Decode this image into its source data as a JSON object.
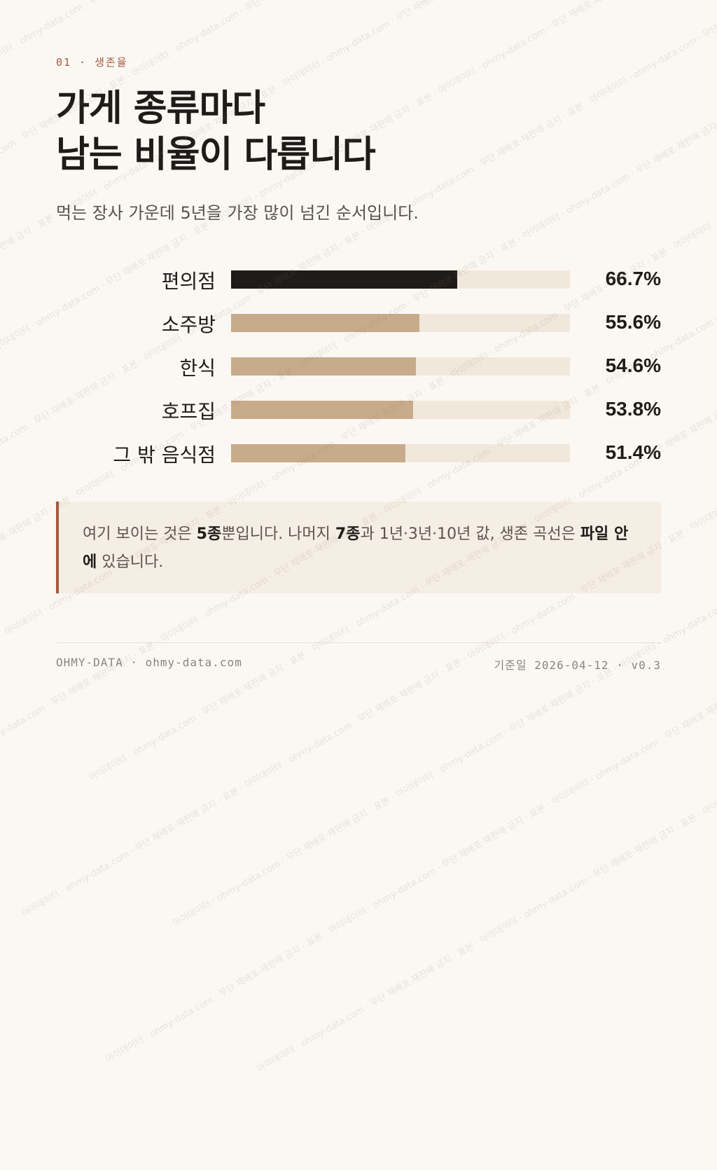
{
  "eyebrow": "01 · 생존율",
  "title": {
    "line1": "가게 종류마다",
    "line2": "남는 비율이 다릅니다"
  },
  "subtitle": "먹는 장사 가운데 5년을 가장 많이 넘긴 순서입니다.",
  "colors": {
    "highlight_bar": "#1f1b18",
    "bar": "#c8ab8a",
    "track": "#f1e8dc",
    "accent": "#a45a3f"
  },
  "chart_data": {
    "type": "bar",
    "orientation": "horizontal",
    "categories": [
      "편의점",
      "소주방",
      "한식",
      "호프집",
      "그 밖 음식점"
    ],
    "values": [
      66.7,
      55.6,
      54.6,
      53.8,
      51.4
    ],
    "value_labels": [
      "66.7%",
      "55.6%",
      "54.6%",
      "53.8%",
      "51.4%"
    ],
    "highlight_index": 0,
    "xlim": [
      0,
      100
    ],
    "grid": false,
    "legend": "none"
  },
  "callout": {
    "t1": "여기 보이는 것은 ",
    "b1": "5종",
    "t2": "뿐입니다. 나머지 ",
    "b2": "7종",
    "t3": "과 1년·3년·10년 값, 생존 곡선은 ",
    "b3": "파일 안에",
    "t4": " 있습니다."
  },
  "footer": {
    "left": "OHMY-DATA · ohmy-data.com",
    "right": "기준일 2026-04-12 · v0.3"
  },
  "watermark_text": "아이데이터 · ohmy-data.com · 무단 재배포·재판매 금지 · 표본"
}
